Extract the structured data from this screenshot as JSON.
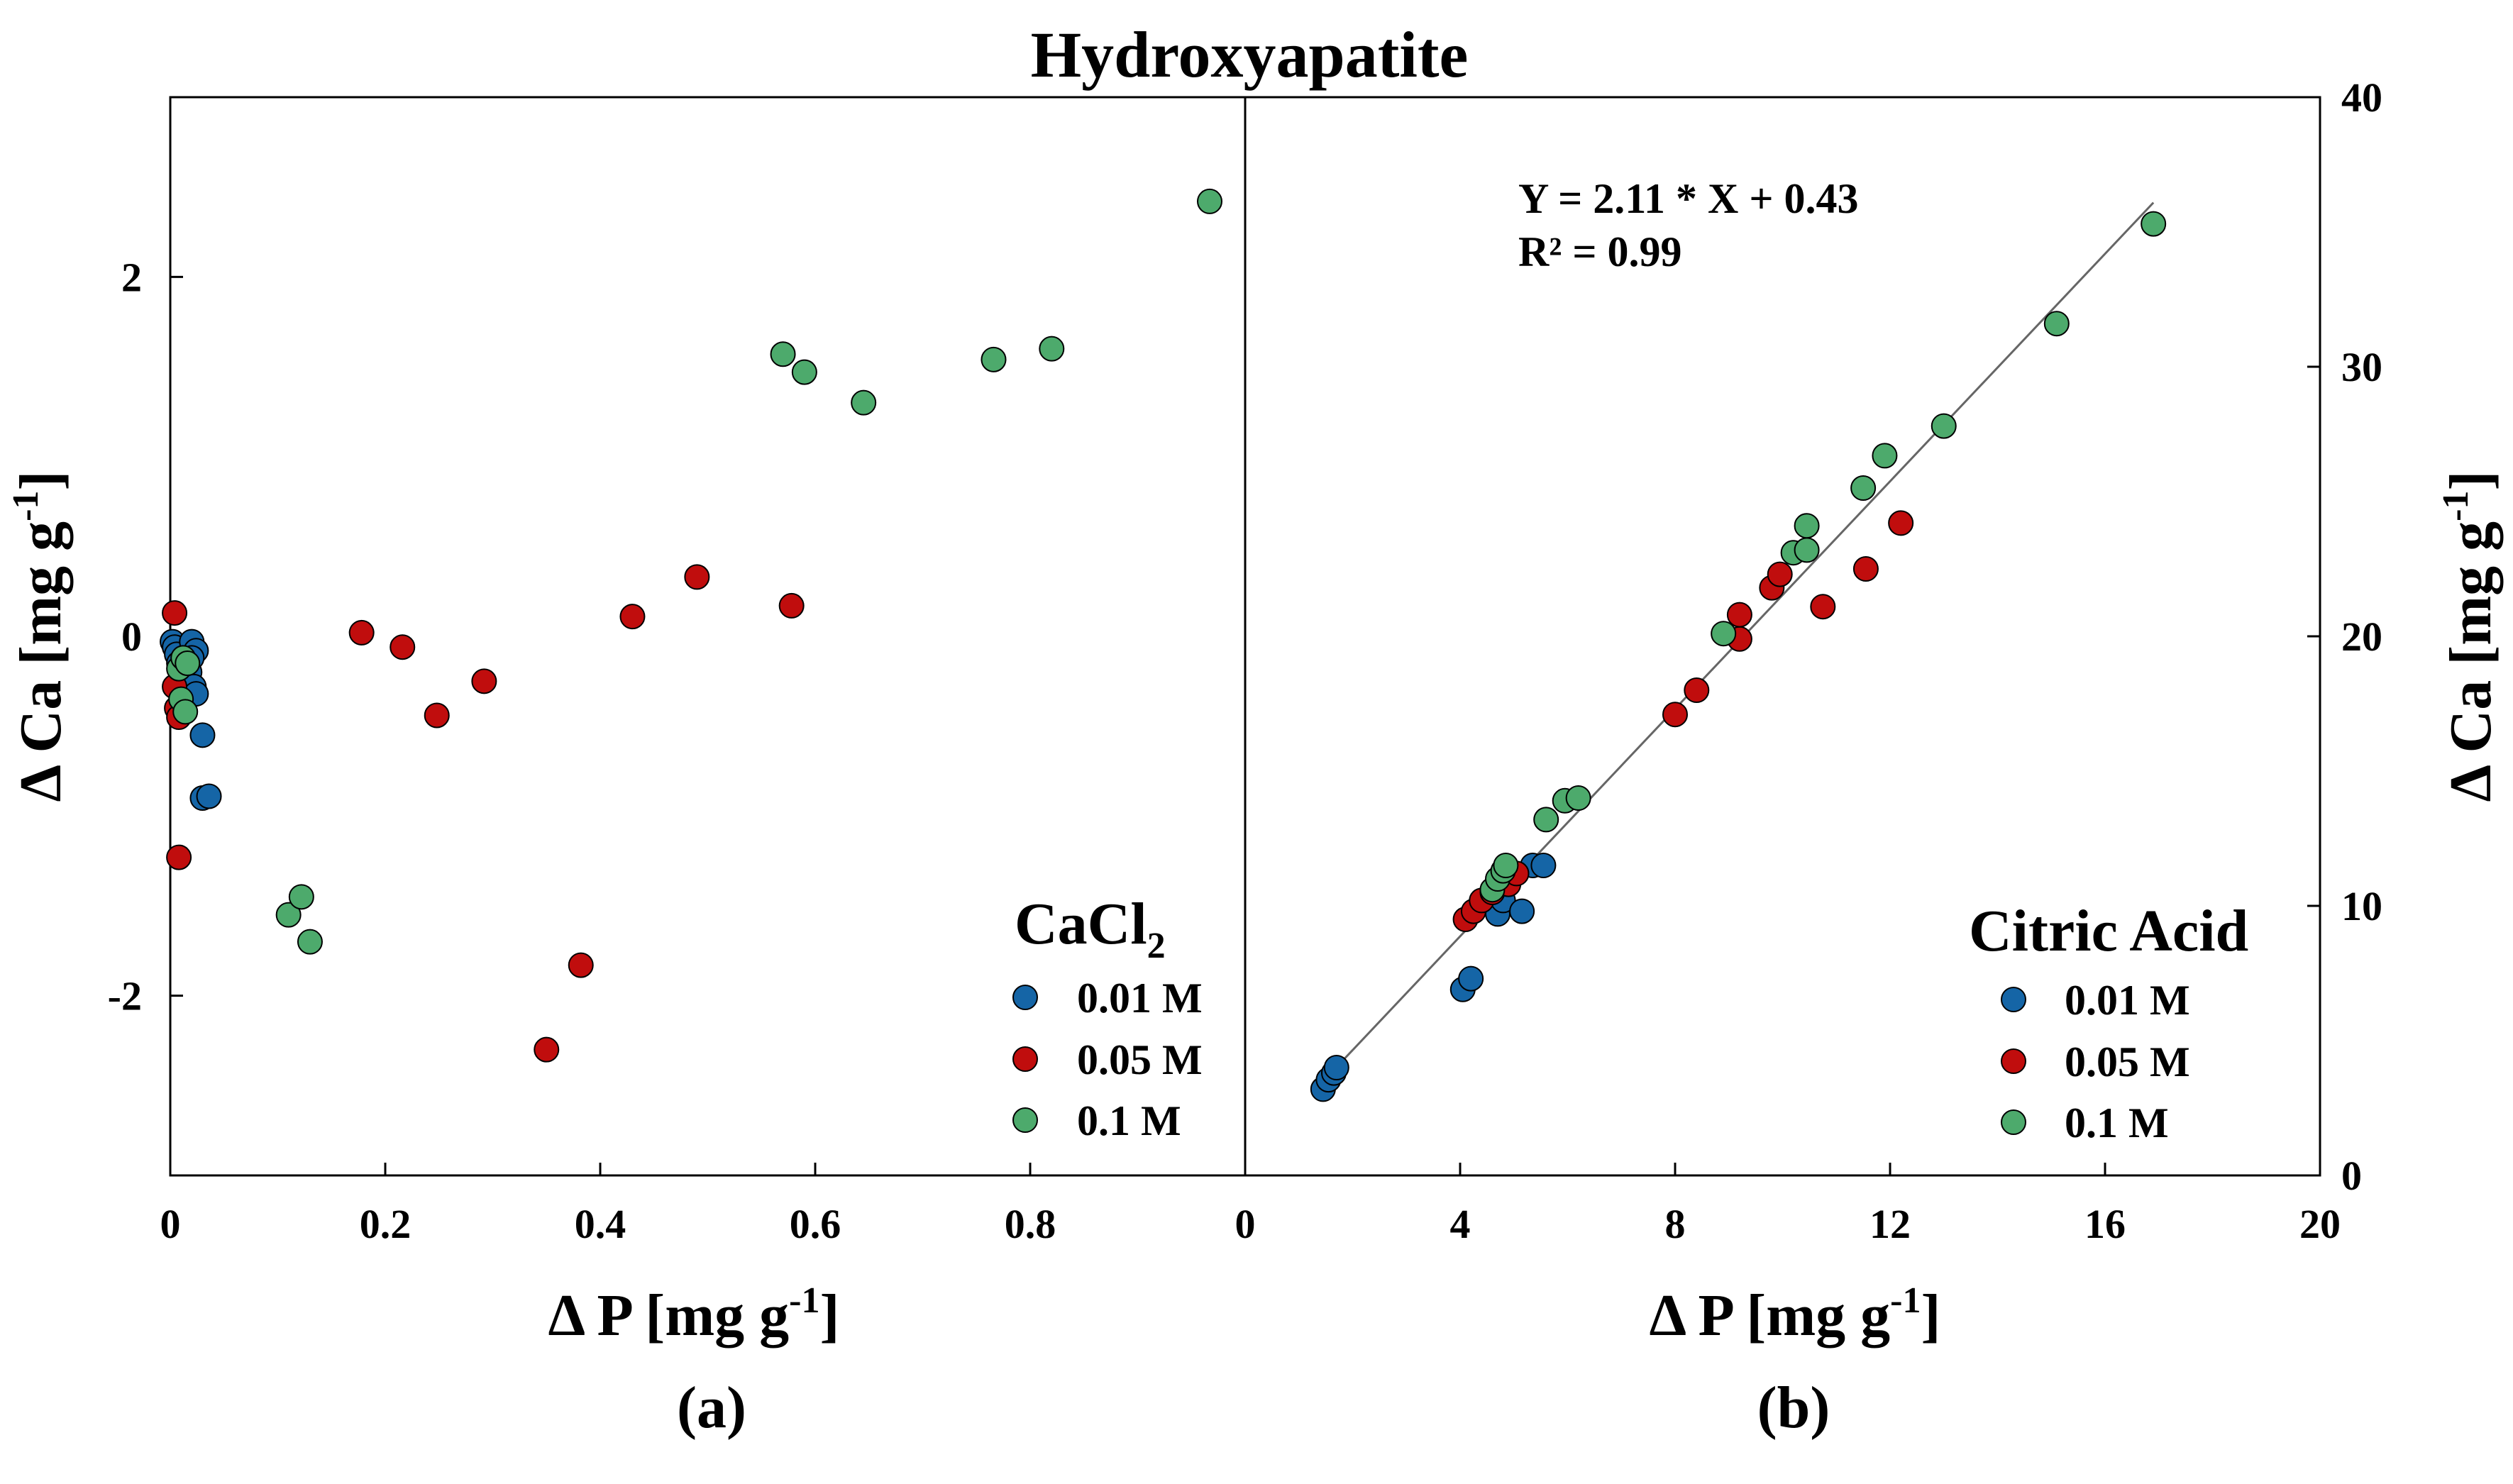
{
  "figure": {
    "title": "Hydroxyapatite",
    "panel_a_label": "(a)",
    "panel_b_label": "(b)"
  },
  "colors": {
    "0.01 M": "#1565a6",
    "0.05 M": "#c00d0d",
    "0.1 M": "#4daa6c",
    "axis": "#000000",
    "fit_line": "#666666"
  },
  "chart_data": [
    {
      "type": "scatter",
      "panel": "a",
      "title": "Hydroxyapatite",
      "xlabel": {
        "main": "Δ P [mg g",
        "sup": "-1",
        "end": "]"
      },
      "ylabel": {
        "main": "Δ Ca [mg g",
        "sup": "-1",
        "end": "]"
      },
      "xlim": [
        0,
        1.0
      ],
      "ylim": [
        -3,
        3
      ],
      "xticks": [
        0,
        0.2,
        0.4,
        0.6,
        0.8
      ],
      "xtick_labels": [
        "0",
        "0.2",
        "0.4",
        "0.6",
        "0.8"
      ],
      "yticks": [
        -2,
        0,
        2
      ],
      "ytick_labels": [
        "-2",
        "0",
        "2"
      ],
      "grid": false,
      "legend": {
        "title": "CaCl",
        "title_sub": "2",
        "position": "bottom-right",
        "entries": [
          "0.01 M",
          "0.05 M",
          "0.1 M"
        ]
      },
      "series": [
        {
          "name": "0.01 M",
          "points": [
            [
              0.002,
              -0.03
            ],
            [
              0.004,
              -0.06
            ],
            [
              0.006,
              -0.1
            ],
            [
              0.008,
              -0.15
            ],
            [
              0.02,
              -0.03
            ],
            [
              0.024,
              -0.08
            ],
            [
              0.02,
              -0.12
            ],
            [
              0.018,
              -0.2
            ],
            [
              0.022,
              -0.28
            ],
            [
              0.024,
              -0.32
            ],
            [
              0.03,
              -0.55
            ],
            [
              0.03,
              -0.9
            ],
            [
              0.036,
              -0.89
            ]
          ]
        },
        {
          "name": "0.05 M",
          "points": [
            [
              0.004,
              0.13
            ],
            [
              0.004,
              -0.28
            ],
            [
              0.006,
              -0.4
            ],
            [
              0.008,
              -0.45
            ],
            [
              0.008,
              -1.23
            ],
            [
              0.178,
              0.02
            ],
            [
              0.216,
              -0.06
            ],
            [
              0.248,
              -0.44
            ],
            [
              0.292,
              -0.25
            ],
            [
              0.35,
              -2.3
            ],
            [
              0.382,
              -1.83
            ],
            [
              0.43,
              0.11
            ],
            [
              0.49,
              0.33
            ],
            [
              0.578,
              0.17
            ]
          ]
        },
        {
          "name": "0.1 M",
          "points": [
            [
              0.008,
              -0.18
            ],
            [
              0.01,
              -0.35
            ],
            [
              0.012,
              -0.12
            ],
            [
              0.014,
              -0.42
            ],
            [
              0.016,
              -0.15
            ],
            [
              0.11,
              -1.55
            ],
            [
              0.122,
              -1.45
            ],
            [
              0.13,
              -1.7
            ],
            [
              0.57,
              1.57
            ],
            [
              0.59,
              1.47
            ],
            [
              0.645,
              1.3
            ],
            [
              0.766,
              1.54
            ],
            [
              0.82,
              1.6
            ],
            [
              0.967,
              2.42
            ]
          ]
        }
      ]
    },
    {
      "type": "scatter",
      "panel": "b",
      "xlabel": {
        "main": "Δ P  [mg g",
        "sup": "-1",
        "end": "]"
      },
      "ylabel": {
        "main": "Δ Ca [mg g",
        "sup": "-1",
        "end": "]"
      },
      "xlim": [
        0,
        20
      ],
      "ylim": [
        0,
        40
      ],
      "xticks": [
        0,
        4,
        8,
        12,
        16,
        20
      ],
      "xtick_labels": [
        "0",
        "4",
        "8",
        "12",
        "16",
        "20"
      ],
      "yticks": [
        0,
        10,
        20,
        30,
        40
      ],
      "ytick_labels": [
        "0",
        "10",
        "20",
        "30",
        "40"
      ],
      "grid": false,
      "annotation": {
        "line1": "Y = 2.11 * X + 0.43",
        "line2": "R² = 0.99"
      },
      "fit": {
        "slope": 2.11,
        "intercept": 0.43,
        "x_range": [
          1.6,
          16.9
        ]
      },
      "legend": {
        "title": "Citric Acid",
        "position": "bottom-right",
        "entries": [
          "0.01 M",
          "0.05 M",
          "0.1 M"
        ]
      },
      "series": [
        {
          "name": "0.01 M",
          "points": [
            [
              1.45,
              3.2
            ],
            [
              1.55,
              3.55
            ],
            [
              1.65,
              3.8
            ],
            [
              1.7,
              4.0
            ],
            [
              4.05,
              6.9
            ],
            [
              4.2,
              7.3
            ],
            [
              4.7,
              9.7
            ],
            [
              4.8,
              10.2
            ],
            [
              5.15,
              9.8
            ],
            [
              5.35,
              11.5
            ],
            [
              5.55,
              11.5
            ]
          ]
        },
        {
          "name": "0.05 M",
          "points": [
            [
              4.1,
              9.5
            ],
            [
              4.25,
              9.8
            ],
            [
              4.4,
              10.2
            ],
            [
              4.6,
              10.5
            ],
            [
              4.9,
              10.8
            ],
            [
              5.05,
              11.2
            ],
            [
              8.0,
              17.1
            ],
            [
              8.4,
              18.0
            ],
            [
              9.2,
              19.9
            ],
            [
              9.2,
              20.8
            ],
            [
              9.8,
              21.8
            ],
            [
              9.95,
              22.3
            ],
            [
              10.75,
              21.1
            ],
            [
              11.55,
              22.5
            ],
            [
              12.2,
              24.2
            ]
          ]
        },
        {
          "name": "0.1 M",
          "points": [
            [
              4.6,
              10.6
            ],
            [
              4.7,
              11.0
            ],
            [
              4.8,
              11.3
            ],
            [
              4.85,
              11.5
            ],
            [
              5.6,
              13.2
            ],
            [
              5.95,
              13.9
            ],
            [
              6.2,
              14.0
            ],
            [
              8.9,
              20.1
            ],
            [
              10.2,
              23.1
            ],
            [
              10.45,
              23.2
            ],
            [
              10.45,
              24.1
            ],
            [
              11.5,
              25.5
            ],
            [
              11.9,
              26.7
            ],
            [
              13.0,
              27.8
            ],
            [
              15.1,
              31.6
            ],
            [
              16.9,
              35.3
            ]
          ]
        }
      ]
    }
  ]
}
